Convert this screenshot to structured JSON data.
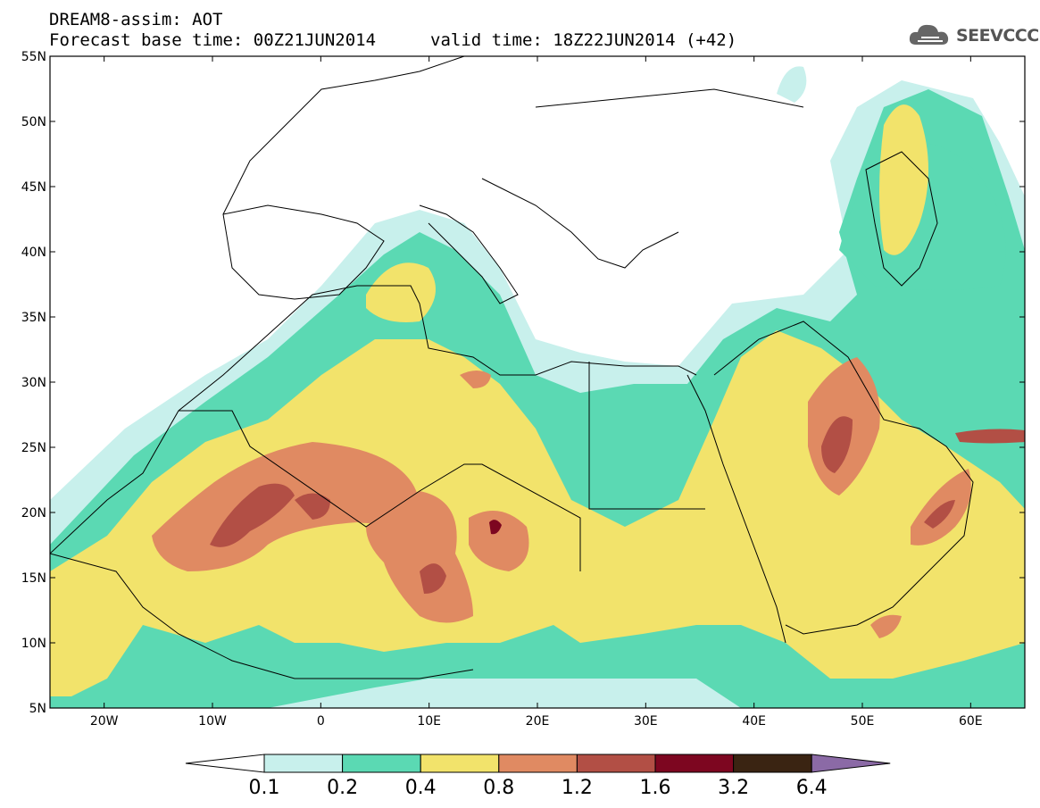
{
  "header": {
    "line1": "DREAM8-assim: AOT",
    "line2": "Forecast base time: 00Z21JUN2014",
    "valid_time": "valid time: 18Z22JUN2014 (+42)"
  },
  "logo": {
    "text": "SEEVCCC",
    "icon": "cloud-icon"
  },
  "map": {
    "lon_range": [
      -25,
      65
    ],
    "lat_range": [
      5,
      55
    ],
    "lat_labels": [
      "5N",
      "10N",
      "15N",
      "20N",
      "25N",
      "30N",
      "35N",
      "40N",
      "45N",
      "50N",
      "55N"
    ],
    "lon_labels": [
      "20W",
      "10W",
      "0",
      "10E",
      "20E",
      "30E",
      "40E",
      "50E",
      "60E"
    ],
    "field_description": "Aerosol optical thickness forecast shaded by class"
  },
  "colorbar": {
    "colors": [
      "#ffffff",
      "#c8f0ec",
      "#5bd9b3",
      "#f2e36b",
      "#e08a62",
      "#b24f45",
      "#7d0620",
      "#3a2412",
      "#8b6aa6"
    ],
    "labels": [
      "0.1",
      "0.2",
      "0.4",
      "0.8",
      "1.2",
      "1.6",
      "3.2",
      "6.4"
    ]
  }
}
